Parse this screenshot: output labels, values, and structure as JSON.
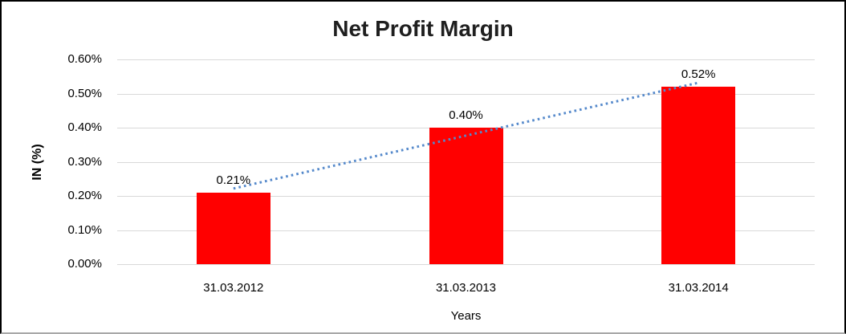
{
  "chart_data": {
    "type": "bar",
    "title": "Net Profit Margin",
    "categories": [
      "31.03.2012",
      "31.03.2013",
      "31.03.2014"
    ],
    "values": [
      0.21,
      0.4,
      0.52
    ],
    "data_labels": [
      "0.21%",
      "0.40%",
      "0.52%"
    ],
    "xlabel": "Years",
    "ylabel": "IN (%)",
    "ylim": [
      0,
      0.6
    ],
    "ytick_step": 0.1,
    "ytick_labels": [
      "0.00%",
      "0.10%",
      "0.20%",
      "0.30%",
      "0.40%",
      "0.50%",
      "0.60%"
    ],
    "grid": true,
    "legend": "none",
    "bar_color": "#ff0000",
    "gridline_color": "#d9d9d9",
    "trendline": {
      "type": "linear",
      "style": "dotted",
      "color": "#5589cb"
    }
  }
}
